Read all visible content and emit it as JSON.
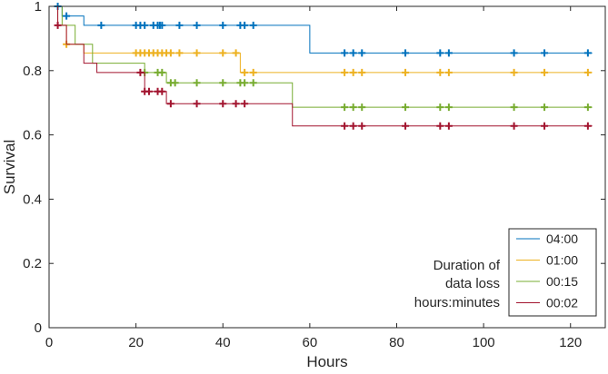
{
  "chart_data": {
    "type": "line",
    "subtype": "kaplan-meier step",
    "xlabel": "Hours",
    "ylabel": "Survival",
    "xlim": [
      0,
      128
    ],
    "ylim": [
      0,
      1
    ],
    "xticks": [
      0,
      20,
      40,
      60,
      80,
      100,
      120
    ],
    "yticks": [
      0,
      0.2,
      0.4,
      0.6,
      0.8,
      1
    ],
    "ytick_labels": [
      "0",
      "0.2",
      "0.4",
      "0.6",
      "0.8",
      "1"
    ],
    "grid": false,
    "legend_position": "bottom-right",
    "legend_title_lines": [
      "Duration of",
      "data loss",
      "hours:minutes"
    ],
    "series": [
      {
        "name": "04:00",
        "color": "#0072BD",
        "steps": [
          [
            0,
            1
          ],
          [
            3,
            0.97
          ],
          [
            8,
            0.941
          ],
          [
            60,
            0.855
          ],
          [
            125,
            0.855
          ]
        ],
        "censored_x": [
          2,
          4,
          12,
          20,
          21,
          22,
          24,
          25,
          25.5,
          26,
          30,
          34,
          40,
          44,
          45,
          47,
          68,
          70,
          72,
          82,
          90,
          92,
          107,
          114,
          124
        ]
      },
      {
        "name": "01:00",
        "color": "#EDB120",
        "steps": [
          [
            0,
            1
          ],
          [
            2,
            0.941
          ],
          [
            4,
            0.882
          ],
          [
            8,
            0.855
          ],
          [
            44,
            0.794
          ],
          [
            125,
            0.794
          ]
        ],
        "censored_x": [
          4,
          20,
          21,
          22,
          23,
          24,
          25,
          26,
          27,
          28,
          30,
          34,
          40,
          43,
          45,
          47,
          68,
          70,
          72,
          82,
          90,
          92,
          107,
          114,
          124
        ]
      },
      {
        "name": "00:15",
        "color": "#77AC30",
        "steps": [
          [
            0,
            1
          ],
          [
            3,
            0.941
          ],
          [
            6,
            0.882
          ],
          [
            10,
            0.823
          ],
          [
            22,
            0.794
          ],
          [
            27,
            0.762
          ],
          [
            38,
            0.762
          ],
          [
            56,
            0.686
          ],
          [
            125,
            0.686
          ]
        ],
        "censored_x": [
          22,
          25,
          26,
          28,
          29,
          34,
          40,
          44,
          45,
          47,
          68,
          70,
          72,
          82,
          90,
          92,
          107,
          114,
          124
        ]
      },
      {
        "name": "00:02",
        "color": "#A2142F",
        "steps": [
          [
            0,
            1
          ],
          [
            2,
            0.941
          ],
          [
            4,
            0.882
          ],
          [
            8,
            0.823
          ],
          [
            11,
            0.794
          ],
          [
            22,
            0.735
          ],
          [
            27,
            0.697
          ],
          [
            56,
            0.628
          ],
          [
            125,
            0.628
          ]
        ],
        "censored_x": [
          2,
          21,
          22,
          23,
          25,
          26,
          28,
          34,
          40,
          43,
          45,
          68,
          70,
          72,
          82,
          90,
          92,
          107,
          114,
          124
        ]
      }
    ]
  }
}
